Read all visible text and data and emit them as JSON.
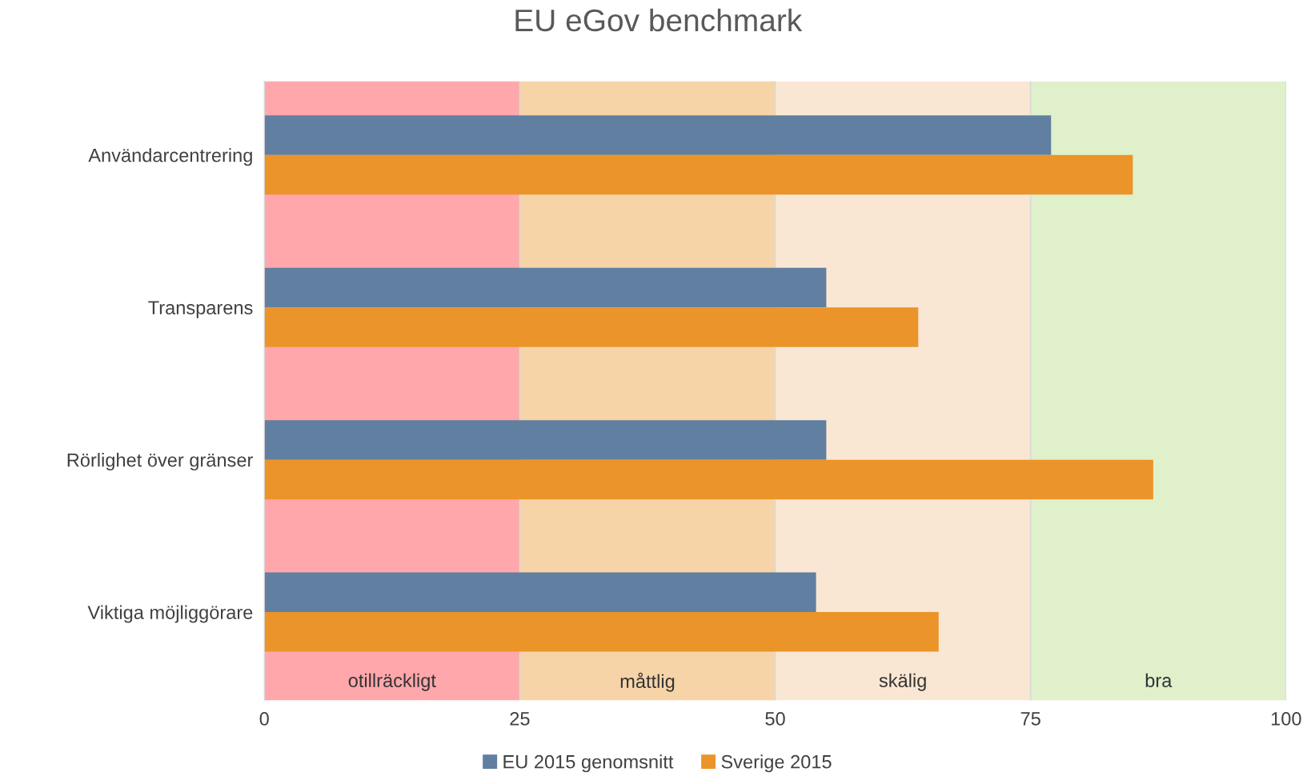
{
  "chart_data": {
    "type": "bar",
    "orientation": "horizontal",
    "title": "EU eGov benchmark",
    "categories": [
      "Användarcentrering",
      "Transparens",
      "Rörlighet över gränser",
      "Viktiga möjliggörare"
    ],
    "series": [
      {
        "name": "EU 2015 genomsnitt",
        "color": "#607fa1",
        "values": [
          77,
          55,
          55,
          54
        ]
      },
      {
        "name": "Sverige 2015",
        "color": "#eb9429",
        "values": [
          85,
          64,
          87,
          66
        ]
      }
    ],
    "xlim": [
      0,
      100
    ],
    "xticks": [
      0,
      25,
      50,
      75,
      100
    ],
    "bands": [
      {
        "axis": "x",
        "from": 0,
        "to": 25,
        "label": "otillräckligt",
        "color": "#ffa7ab"
      },
      {
        "axis": "x",
        "from": 25,
        "to": 50,
        "label": "måttlig",
        "color": "#f6d4a8"
      },
      {
        "axis": "x",
        "from": 50,
        "to": 75,
        "label": "skälig",
        "color": "#fae7d3"
      },
      {
        "axis": "x",
        "from": 75,
        "to": 100,
        "label": "bra",
        "color": "#dff0cb"
      }
    ],
    "grid": "x",
    "legend": "bottom"
  }
}
